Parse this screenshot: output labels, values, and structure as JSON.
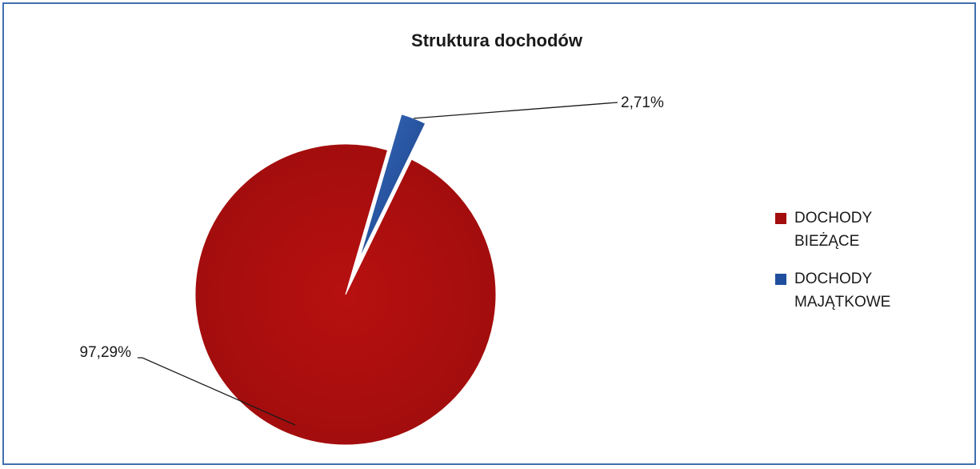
{
  "chart_data": {
    "type": "pie",
    "title": "Struktura dochodów",
    "slices": [
      {
        "name": "DOCHODY BIEŻĄCE",
        "value": 97.29,
        "label": "97,29%",
        "color": "#a30d0d"
      },
      {
        "name": "DOCHODY MAJĄTKOWE",
        "value": 2.71,
        "label": "2,71%",
        "color": "#1f4e9e"
      }
    ],
    "legend_position": "right"
  }
}
